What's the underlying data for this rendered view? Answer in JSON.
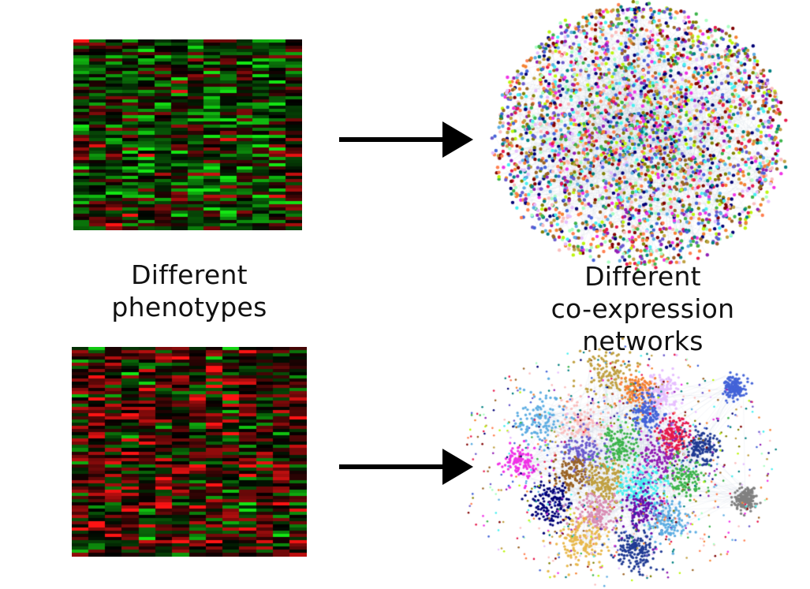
{
  "labels": {
    "phenotypes_line1": "Different",
    "phenotypes_line2": "phenotypes",
    "networks_line1": "Different",
    "networks_line2": "co-expression networks"
  },
  "colors": {
    "heatmap_red": "#ff1a1a",
    "heatmap_green": "#1aff1a",
    "heatmap_black": "#000000",
    "arrow": "#000000"
  },
  "network_palette": [
    "#e6194b",
    "#3cb44b",
    "#4363d8",
    "#f58231",
    "#911eb4",
    "#46f0f0",
    "#f032e6",
    "#bcf60c",
    "#fabebe",
    "#008080",
    "#e6beff",
    "#9a6324",
    "#800000",
    "#aaffc3",
    "#808000",
    "#000075",
    "#5dade2",
    "#c0a040",
    "#ff7f50",
    "#6a5acd"
  ]
}
